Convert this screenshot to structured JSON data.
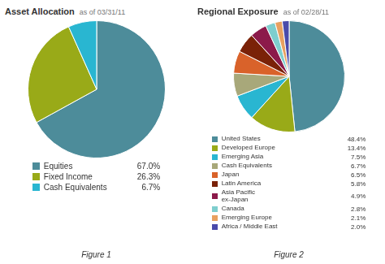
{
  "chart_data": [
    {
      "type": "pie",
      "title": "Asset Allocation",
      "subtitle": "as of 03/31/11",
      "categories": [
        "Equities",
        "Fixed Income",
        "Cash Equivalents"
      ],
      "values": [
        67.0,
        26.3,
        6.7
      ],
      "value_labels": [
        "67.0%",
        "26.3%",
        "6.7%"
      ],
      "colors": [
        "#4d8c9a",
        "#99aa18",
        "#29b6d1"
      ],
      "annotations": [
        "Figure 1"
      ]
    },
    {
      "type": "pie",
      "title": "Regional Exposure",
      "subtitle": "as of 02/28/11",
      "categories": [
        "United States",
        "Developed Europe",
        "Emerging Asia",
        "Cash Equivalents",
        "Japan",
        "Latin America",
        "Asia Pacific\nex-Japan",
        "Canada",
        "Emerging Europe",
        "Africa / Middle East"
      ],
      "values": [
        48.4,
        13.4,
        7.5,
        6.7,
        6.5,
        5.8,
        4.9,
        2.8,
        2.1,
        2.0
      ],
      "value_labels": [
        "48.4%",
        "13.4%",
        "7.5%",
        "6.7%",
        "6.5%",
        "5.8%",
        "4.9%",
        "2.8%",
        "2.1%",
        "2.0%"
      ],
      "colors": [
        "#4d8c9a",
        "#99aa18",
        "#29b6d1",
        "#a8a87a",
        "#d9622a",
        "#7a2208",
        "#8c1a4a",
        "#7ecece",
        "#e8a060",
        "#4a4aaa"
      ],
      "annotations": [
        "Figure 2"
      ]
    }
  ]
}
